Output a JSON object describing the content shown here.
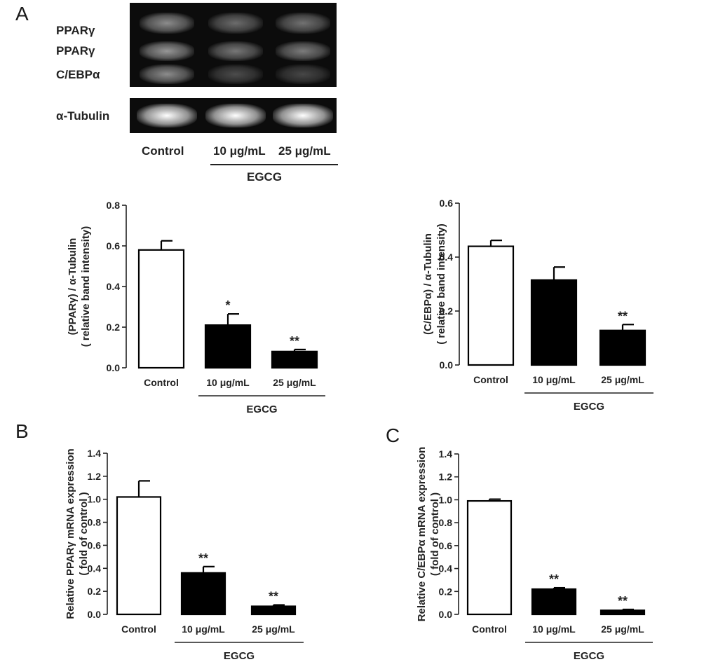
{
  "panels": {
    "a": "A",
    "b": "B",
    "c": "C"
  },
  "blot": {
    "row_labels": [
      "PPARγ",
      "PPARγ",
      "C/EBPα"
    ],
    "loading_label": "α-Tubulin",
    "lanes": [
      "Control",
      "10 μg/mL",
      "25 μg/mL"
    ],
    "group_label": "EGCG",
    "band_intensity": {
      "pparg_upper": [
        0.75,
        0.45,
        0.5
      ],
      "pparg_lower": [
        0.85,
        0.55,
        0.6
      ],
      "cebpa": [
        0.75,
        0.15,
        0.1
      ],
      "tubulin": [
        1.0,
        1.0,
        1.0
      ]
    }
  },
  "chart_data": [
    {
      "id": "a1",
      "type": "bar",
      "categories": [
        "Control",
        "10 μg/mL",
        "25 μg/mL"
      ],
      "values": [
        0.58,
        0.21,
        0.08
      ],
      "errors": [
        0.045,
        0.055,
        0.01
      ],
      "significance": [
        "",
        "*",
        "**"
      ],
      "fills": [
        "#ffffff",
        "#000000",
        "#000000"
      ],
      "ylim": [
        0,
        0.8
      ],
      "yticks": [
        "0.0",
        "0.2",
        "0.4",
        "0.6",
        "0.8"
      ],
      "ylabel": [
        "(PPARγ) / α-Tubulin",
        "( relative band intensity)"
      ],
      "group_label": "EGCG"
    },
    {
      "id": "a2",
      "type": "bar",
      "categories": [
        "Control",
        "10 μg/mL",
        "25 μg/mL"
      ],
      "values": [
        0.44,
        0.315,
        0.128
      ],
      "errors": [
        0.022,
        0.048,
        0.022
      ],
      "significance": [
        "",
        "",
        "**"
      ],
      "fills": [
        "#ffffff",
        "#000000",
        "#000000"
      ],
      "ylim": [
        0,
        0.6
      ],
      "yticks": [
        "0.0",
        "0.2",
        "0.4",
        "0.6"
      ],
      "ylabel": [
        "(C/EBPα) / α-Tubulin",
        "( relative band intensity)"
      ],
      "group_label": "EGCG"
    },
    {
      "id": "b",
      "type": "bar",
      "categories": [
        "Control",
        "10 μg/mL",
        "25 μg/mL"
      ],
      "values": [
        1.02,
        0.36,
        0.07
      ],
      "errors": [
        0.14,
        0.055,
        0.012
      ],
      "significance": [
        "",
        "**",
        "**"
      ],
      "fills": [
        "#ffffff",
        "#000000",
        "#000000"
      ],
      "ylim": [
        0,
        1.4
      ],
      "yticks": [
        "0.0",
        "0.2",
        "0.4",
        "0.6",
        "0.8",
        "1.0",
        "1.2",
        "1.4"
      ],
      "ylabel": [
        "Relative PPARγ mRNA expression",
        "( fold of control )"
      ],
      "group_label": "EGCG"
    },
    {
      "id": "c",
      "type": "bar",
      "categories": [
        "Control",
        "10 μg/mL",
        "25 μg/mL"
      ],
      "values": [
        0.99,
        0.22,
        0.035
      ],
      "errors": [
        0.015,
        0.012,
        0.008
      ],
      "significance": [
        "",
        "**",
        "**"
      ],
      "fills": [
        "#ffffff",
        "#000000",
        "#000000"
      ],
      "ylim": [
        0,
        1.4
      ],
      "yticks": [
        "0.0",
        "0.2",
        "0.4",
        "0.6",
        "0.8",
        "1.0",
        "1.2",
        "1.4"
      ],
      "ylabel": [
        "Relative C/EBPα mRNA expression",
        "( fold of control )"
      ],
      "group_label": "EGCG"
    }
  ]
}
